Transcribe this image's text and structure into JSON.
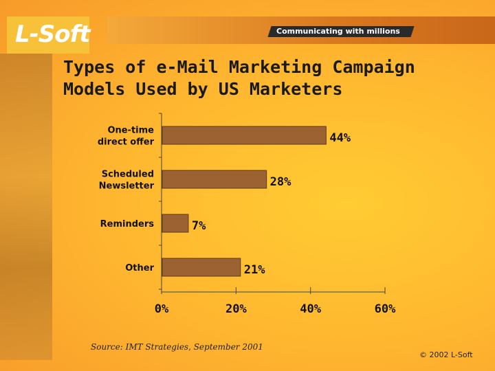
{
  "header": {
    "logo": "L-Soft",
    "tagline": "Communicating with millions"
  },
  "slide": {
    "title_line1": "Types of e-Mail Marketing Campaign",
    "title_line2": "Models Used by US Marketers",
    "source": "Source: IMT Strategies, September 2001",
    "copyright": "© 2002 L-Soft"
  },
  "colors": {
    "bar": "#9c6232",
    "bar_outline": "#5a3a1e"
  },
  "chart_data": {
    "type": "bar",
    "orientation": "horizontal",
    "categories": [
      [
        "One-time",
        "direct offer"
      ],
      [
        "Scheduled",
        "Newsletter"
      ],
      [
        "Reminders"
      ],
      [
        "Other"
      ]
    ],
    "values": [
      44,
      28,
      7,
      21
    ],
    "value_labels": [
      "44%",
      "28%",
      "7%",
      "21%"
    ],
    "xlim": [
      0,
      60
    ],
    "xticks": [
      0,
      20,
      40,
      60
    ],
    "xtick_labels": [
      "0%",
      "20%",
      "40%",
      "60%"
    ],
    "title": "Types of e-Mail Marketing Campaign Models Used by US Marketers",
    "xlabel": "",
    "ylabel": "",
    "grid": false,
    "legend": "none"
  }
}
